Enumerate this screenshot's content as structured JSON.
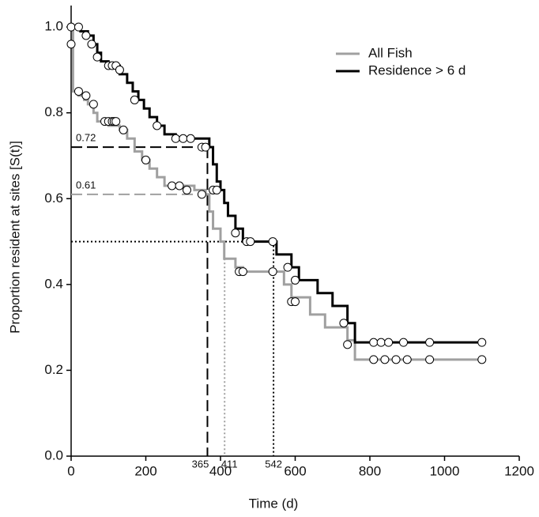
{
  "chart_data": {
    "type": "step",
    "y_label": "Proportion resident at sites [S(t)]",
    "x_label": "Time (d)",
    "xlim": [
      0,
      1200
    ],
    "ylim": [
      0,
      1.05
    ],
    "xticks": [
      0,
      200,
      400,
      600,
      800,
      1000,
      1200
    ],
    "yticks": [
      {
        "value": 0,
        "label": "0.0"
      },
      0.2,
      0.4,
      0.6,
      0.8,
      {
        "value": 1,
        "label": "1.0"
      }
    ],
    "legend": "upper right",
    "series": [
      {
        "name": "All Fish",
        "color": "#a0a0a0",
        "x": [
          0,
          5,
          20,
          35,
          45,
          60,
          70,
          100,
          130,
          150,
          170,
          190,
          210,
          230,
          250,
          330,
          360,
          370,
          380,
          400,
          410,
          440,
          460,
          570,
          590,
          640,
          680,
          740,
          760,
          1100
        ],
        "values": [
          1.0,
          0.85,
          0.84,
          0.83,
          0.82,
          0.8,
          0.78,
          0.77,
          0.76,
          0.74,
          0.71,
          0.69,
          0.67,
          0.65,
          0.63,
          0.62,
          0.61,
          0.57,
          0.53,
          0.5,
          0.46,
          0.44,
          0.43,
          0.4,
          0.37,
          0.33,
          0.3,
          0.27,
          0.225,
          0.225
        ],
        "censor_x": [
          0,
          20,
          40,
          60,
          90,
          100,
          110,
          115,
          120,
          140,
          200,
          270,
          290,
          310,
          350,
          380,
          450,
          460,
          540,
          590,
          600,
          740,
          810,
          840,
          870,
          900,
          960,
          1100
        ],
        "censor_values": [
          0.96,
          0.85,
          0.84,
          0.82,
          0.78,
          0.78,
          0.78,
          0.78,
          0.78,
          0.76,
          0.69,
          0.63,
          0.63,
          0.62,
          0.61,
          0.62,
          0.43,
          0.43,
          0.43,
          0.36,
          0.36,
          0.26,
          0.225,
          0.225,
          0.225,
          0.225,
          0.225,
          0.225
        ]
      },
      {
        "name": "Residence > 6 d",
        "color": "#000000",
        "x": [
          0,
          25,
          45,
          60,
          70,
          80,
          100,
          130,
          150,
          165,
          180,
          195,
          210,
          230,
          250,
          280,
          370,
          380,
          390,
          400,
          410,
          420,
          440,
          460,
          550,
          590,
          610,
          660,
          700,
          740,
          760,
          1100
        ],
        "values": [
          1.0,
          0.99,
          0.98,
          0.96,
          0.94,
          0.92,
          0.91,
          0.89,
          0.87,
          0.85,
          0.83,
          0.81,
          0.79,
          0.77,
          0.75,
          0.74,
          0.72,
          0.68,
          0.64,
          0.62,
          0.59,
          0.56,
          0.53,
          0.5,
          0.47,
          0.44,
          0.41,
          0.38,
          0.35,
          0.31,
          0.265,
          0.265
        ],
        "censor_x": [
          0,
          20,
          40,
          55,
          70,
          100,
          110,
          120,
          130,
          170,
          230,
          280,
          300,
          320,
          350,
          360,
          390,
          440,
          470,
          480,
          540,
          580,
          600,
          730,
          810,
          830,
          850,
          890,
          960,
          1100
        ],
        "censor_values": [
          1.0,
          1.0,
          0.98,
          0.96,
          0.93,
          0.91,
          0.91,
          0.91,
          0.9,
          0.83,
          0.77,
          0.74,
          0.74,
          0.74,
          0.72,
          0.72,
          0.62,
          0.52,
          0.5,
          0.5,
          0.5,
          0.44,
          0.41,
          0.31,
          0.265,
          0.265,
          0.265,
          0.265,
          0.265,
          0.265
        ]
      }
    ],
    "h_guides": [
      {
        "y": 0.72,
        "x_end": 365,
        "color": "#000000",
        "style": "dashed",
        "show_label": true
      },
      {
        "y": 0.61,
        "x_end": 365,
        "color": "#a0a0a0",
        "style": "dashed",
        "show_label": true
      },
      {
        "y": 0.5,
        "x_end": 542,
        "color": "#000000",
        "style": "dotted",
        "show_label": false
      }
    ],
    "v_guides": [
      {
        "x": 365,
        "y_end": 0.72,
        "color": "#000000",
        "style": "dashed"
      },
      {
        "x": 411,
        "y_end": 0.46,
        "color": "#a0a0a0",
        "style": "dotted"
      },
      {
        "x": 542,
        "y_end": 0.5,
        "color": "#000000",
        "style": "dotted"
      }
    ]
  }
}
